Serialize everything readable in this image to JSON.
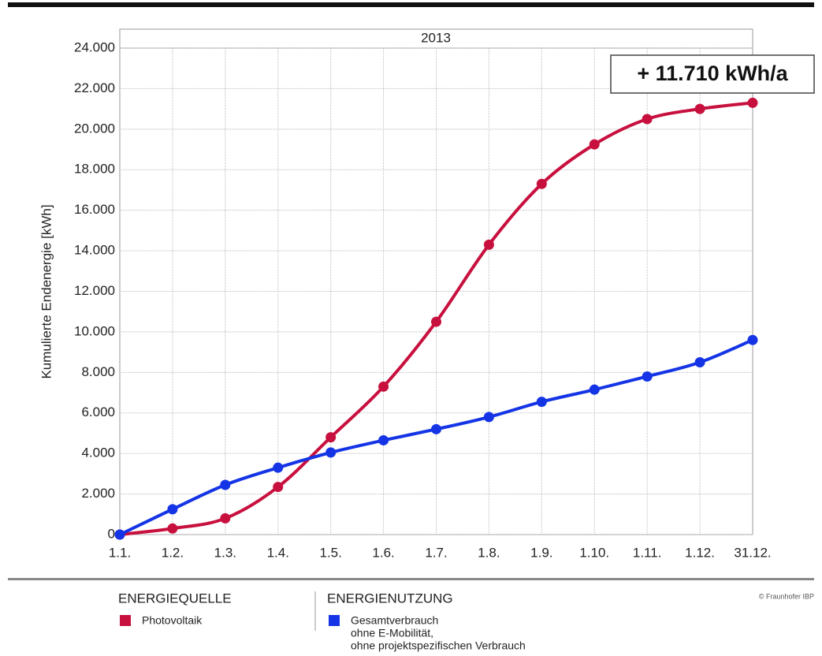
{
  "chart_data": {
    "type": "line",
    "panel_title": "2013",
    "annotation": "+ 11.710 kWh/a",
    "ylabel": "Kumulierte Endenergie [kWh]",
    "categories": [
      "1.1.",
      "1.2.",
      "1.3.",
      "1.4.",
      "1.5.",
      "1.6.",
      "1.7.",
      "1.8.",
      "1.9.",
      "1.10.",
      "1.11.",
      "1.12.",
      "31.12."
    ],
    "series": [
      {
        "name": "Photovoltaik",
        "color": "#c8103e",
        "values": [
          0,
          300,
          800,
          2350,
          4800,
          7300,
          10500,
          14300,
          17300,
          19250,
          20500,
          21000,
          21300
        ]
      },
      {
        "name": "Gesamtverbrauch",
        "name_detail": [
          "ohne E-Mobilität,",
          "ohne projektspezifischen Verbrauch"
        ],
        "color": "#1434e6",
        "values": [
          0,
          1250,
          2450,
          3300,
          4050,
          4650,
          5200,
          5800,
          6550,
          7150,
          7800,
          8500,
          9600
        ]
      }
    ],
    "legend_groups": [
      "ENERGIEQUELLE",
      "ENERGIENUTZUNG"
    ],
    "copyright": "© Fraunhofer IBP",
    "ylim": [
      0,
      24000
    ],
    "yticks": [
      0,
      {
        "value": 2000,
        "label": "2.000"
      },
      {
        "value": 4000,
        "label": "4.000"
      },
      {
        "value": 6000,
        "label": "6.000"
      },
      {
        "value": 8000,
        "label": "8.000"
      },
      {
        "value": 10000,
        "label": "10.000"
      },
      {
        "value": 12000,
        "label": "12.000"
      },
      {
        "value": 14000,
        "label": "14.000"
      },
      {
        "value": 16000,
        "label": "16.000"
      },
      {
        "value": 18000,
        "label": "18.000"
      },
      {
        "value": 20000,
        "label": "20.000"
      },
      {
        "value": 22000,
        "label": "22.000"
      },
      {
        "value": 24000,
        "label": "24.000"
      }
    ],
    "grid": true
  }
}
